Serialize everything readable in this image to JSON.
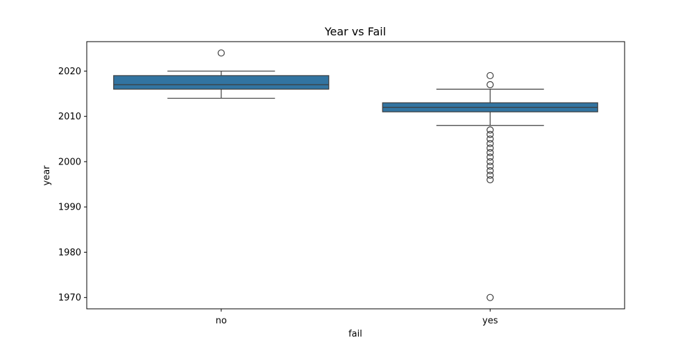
{
  "chart_data": {
    "type": "box",
    "title": "Year vs Fail",
    "xlabel": "fail",
    "ylabel": "year",
    "categories": [
      "no",
      "yes"
    ],
    "ylim": [
      1967.5,
      2026.5
    ],
    "yticks": [
      1970,
      1980,
      1990,
      2000,
      2010,
      2020
    ],
    "grid": false,
    "color": "#3274a1",
    "boxes": [
      {
        "category": "no",
        "whisker_low": 2014,
        "q1": 2016,
        "median": 2017,
        "q3": 2019,
        "whisker_high": 2020,
        "outliers": [
          2024
        ]
      },
      {
        "category": "yes",
        "whisker_low": 2008,
        "q1": 2011,
        "median": 2012,
        "q3": 2013,
        "whisker_high": 2016,
        "outliers": [
          2019,
          2017,
          2007,
          2006,
          2005,
          2004,
          2003,
          2002,
          2001,
          2000,
          1999,
          1998,
          1997,
          1996,
          1970
        ]
      }
    ]
  }
}
